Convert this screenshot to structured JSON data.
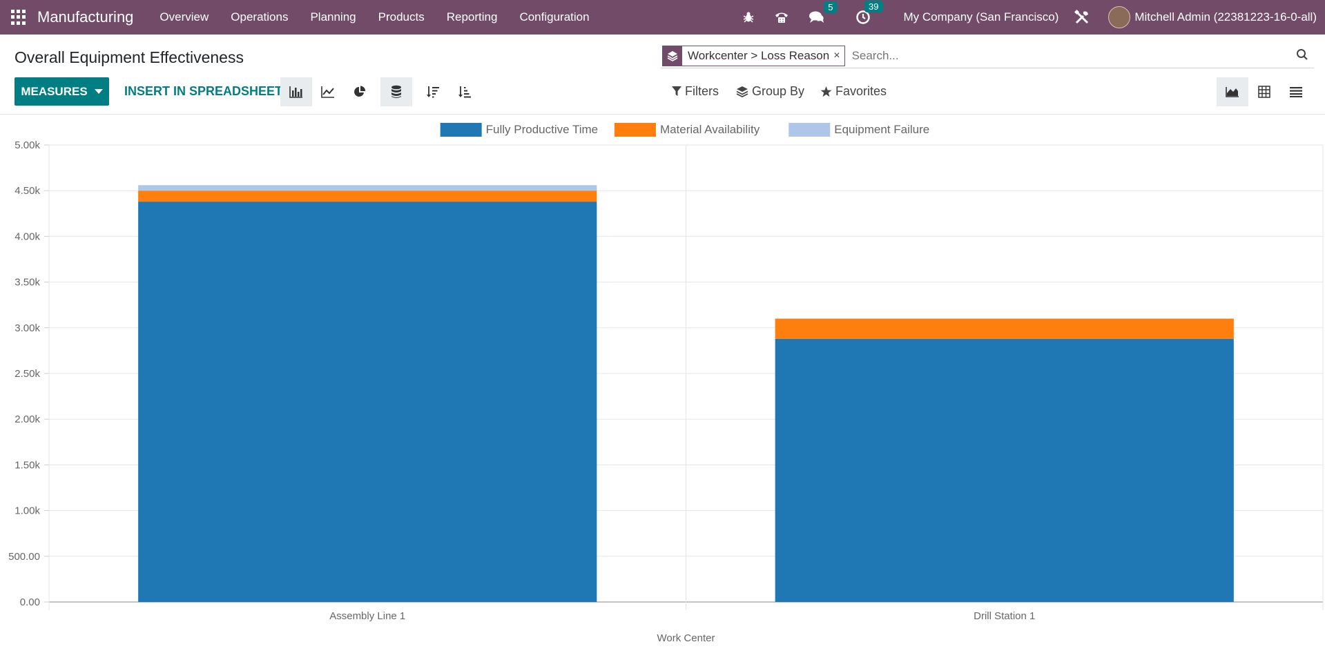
{
  "navbar": {
    "app_name": "Manufacturing",
    "menu": [
      "Overview",
      "Operations",
      "Planning",
      "Products",
      "Reporting",
      "Configuration"
    ],
    "messages_badge": "5",
    "activities_badge": "39",
    "company": "My Company (San Francisco)",
    "user": "Mitchell Admin (22381223-16-0-all)"
  },
  "page": {
    "title": "Overall Equipment Effectiveness"
  },
  "search": {
    "facet": "Workcenter > Loss Reason",
    "facet_remove": "×",
    "placeholder": "Search..."
  },
  "toolbar": {
    "measures_label": "MEASURES",
    "insert_label": "INSERT IN SPREADSHEET",
    "filters_label": "Filters",
    "group_by_label": "Group By",
    "favorites_label": "Favorites"
  },
  "colors": {
    "brand": "#714b67",
    "accent": "#017e84",
    "series_productive": "#1f77b4",
    "series_material": "#ff7f0e",
    "series_failure": "#aec7e8"
  },
  "chart_data": {
    "type": "bar",
    "stacked": true,
    "categories": [
      "Assembly Line 1",
      "Drill Station 1"
    ],
    "series": [
      {
        "name": "Fully Productive Time",
        "values": [
          4380,
          2880
        ],
        "color": "#1f77b4"
      },
      {
        "name": "Material Availability",
        "values": [
          120,
          220
        ],
        "color": "#ff7f0e"
      },
      {
        "name": "Equipment Failure",
        "values": [
          60,
          0
        ],
        "color": "#aec7e8"
      }
    ],
    "xlabel": "Work Center",
    "ylim": [
      0,
      5000
    ],
    "yticks": [
      "0.00",
      "500.00",
      "1.00k",
      "1.50k",
      "2.00k",
      "2.50k",
      "3.00k",
      "3.50k",
      "4.00k",
      "4.50k",
      "5.00k"
    ],
    "legend_position": "top-center",
    "grid": true
  }
}
